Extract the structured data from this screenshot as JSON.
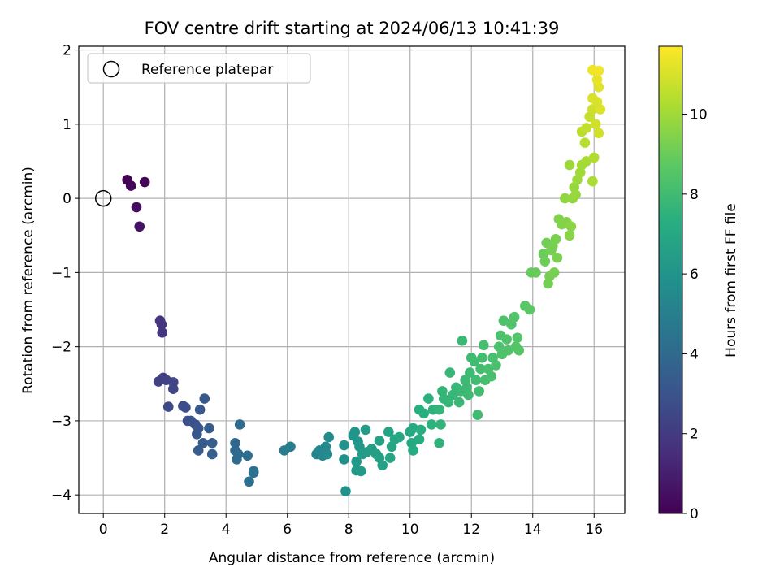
{
  "chart_data": {
    "type": "scatter",
    "title": "FOV centre drift starting at 2024/06/13 10:41:39",
    "xlabel": "Angular distance from reference (arcmin)",
    "ylabel": "Rotation from reference (arcmin)",
    "xlim": [
      -0.8,
      17.0
    ],
    "ylim": [
      -4.25,
      2.05
    ],
    "xticks": [
      0,
      2,
      4,
      6,
      8,
      10,
      12,
      14,
      16
    ],
    "yticks": [
      -4,
      -3,
      -2,
      -1,
      0,
      1,
      2
    ],
    "grid": true,
    "legend": {
      "placement": "top-left",
      "entries": [
        "Reference platepar"
      ]
    },
    "reference_point": {
      "x": 0,
      "y": 0
    },
    "colorbar": {
      "label": "Hours from first FF file",
      "min": 0,
      "max": 11.7,
      "ticks": [
        0,
        2,
        4,
        6,
        8,
        10
      ],
      "colormap": "viridis"
    },
    "series": [
      {
        "colormap_variable": "hours",
        "points": [
          {
            "x": 0.78,
            "y": 0.25,
            "c": 0.0
          },
          {
            "x": 1.35,
            "y": 0.22,
            "c": 0.1
          },
          {
            "x": 0.9,
            "y": 0.17,
            "c": 0.2
          },
          {
            "x": 1.08,
            "y": -0.12,
            "c": 0.4
          },
          {
            "x": 1.18,
            "y": -0.38,
            "c": 0.6
          },
          {
            "x": 1.85,
            "y": -1.65,
            "c": 1.7
          },
          {
            "x": 1.9,
            "y": -1.7,
            "c": 1.75
          },
          {
            "x": 1.92,
            "y": -1.81,
            "c": 1.8
          },
          {
            "x": 1.8,
            "y": -2.47,
            "c": 2.2
          },
          {
            "x": 1.95,
            "y": -2.42,
            "c": 2.25
          },
          {
            "x": 2.05,
            "y": -2.45,
            "c": 2.3
          },
          {
            "x": 2.28,
            "y": -2.48,
            "c": 2.4
          },
          {
            "x": 2.28,
            "y": -2.57,
            "c": 2.45
          },
          {
            "x": 2.12,
            "y": -2.81,
            "c": 2.55
          },
          {
            "x": 2.6,
            "y": -2.8,
            "c": 2.7
          },
          {
            "x": 2.68,
            "y": -2.82,
            "c": 2.75
          },
          {
            "x": 2.75,
            "y": -3.0,
            "c": 2.85
          },
          {
            "x": 2.85,
            "y": -3.0,
            "c": 2.9
          },
          {
            "x": 3.0,
            "y": -3.05,
            "c": 3.0
          },
          {
            "x": 3.1,
            "y": -3.1,
            "c": 3.05
          },
          {
            "x": 3.05,
            "y": -3.18,
            "c": 3.1
          },
          {
            "x": 3.15,
            "y": -2.85,
            "c": 3.15
          },
          {
            "x": 3.3,
            "y": -2.7,
            "c": 3.2
          },
          {
            "x": 3.25,
            "y": -3.3,
            "c": 3.3
          },
          {
            "x": 3.1,
            "y": -3.4,
            "c": 3.35
          },
          {
            "x": 3.45,
            "y": -3.1,
            "c": 3.4
          },
          {
            "x": 3.55,
            "y": -3.3,
            "c": 3.45
          },
          {
            "x": 3.55,
            "y": -3.45,
            "c": 3.5
          },
          {
            "x": 4.3,
            "y": -3.3,
            "c": 3.9
          },
          {
            "x": 4.3,
            "y": -3.4,
            "c": 3.95
          },
          {
            "x": 4.4,
            "y": -3.45,
            "c": 4.0
          },
          {
            "x": 4.35,
            "y": -3.52,
            "c": 4.05
          },
          {
            "x": 4.45,
            "y": -3.05,
            "c": 4.1
          },
          {
            "x": 4.7,
            "y": -3.47,
            "c": 4.15
          },
          {
            "x": 4.75,
            "y": -3.82,
            "c": 4.25
          },
          {
            "x": 4.9,
            "y": -3.7,
            "c": 4.3
          },
          {
            "x": 4.9,
            "y": -3.68,
            "c": 4.35
          },
          {
            "x": 5.9,
            "y": -3.4,
            "c": 4.8
          },
          {
            "x": 6.1,
            "y": -3.35,
            "c": 4.9
          },
          {
            "x": 6.95,
            "y": -3.45,
            "c": 5.3
          },
          {
            "x": 7.05,
            "y": -3.4,
            "c": 5.35
          },
          {
            "x": 7.15,
            "y": -3.47,
            "c": 5.4
          },
          {
            "x": 7.25,
            "y": -3.35,
            "c": 5.45
          },
          {
            "x": 7.3,
            "y": -3.45,
            "c": 5.5
          },
          {
            "x": 7.35,
            "y": -3.22,
            "c": 5.55
          },
          {
            "x": 7.85,
            "y": -3.52,
            "c": 5.8
          },
          {
            "x": 7.9,
            "y": -3.95,
            "c": 5.85
          },
          {
            "x": 7.85,
            "y": -3.33,
            "c": 5.9
          },
          {
            "x": 8.15,
            "y": -3.2,
            "c": 6.0
          },
          {
            "x": 8.2,
            "y": -3.15,
            "c": 6.05
          },
          {
            "x": 8.3,
            "y": -3.28,
            "c": 6.1
          },
          {
            "x": 8.35,
            "y": -3.35,
            "c": 6.15
          },
          {
            "x": 8.25,
            "y": -3.55,
            "c": 6.2
          },
          {
            "x": 8.25,
            "y": -3.67,
            "c": 6.25
          },
          {
            "x": 8.4,
            "y": -3.68,
            "c": 6.3
          },
          {
            "x": 8.45,
            "y": -3.45,
            "c": 6.35
          },
          {
            "x": 8.55,
            "y": -3.12,
            "c": 6.4
          },
          {
            "x": 8.6,
            "y": -3.42,
            "c": 6.45
          },
          {
            "x": 8.75,
            "y": -3.38,
            "c": 6.5
          },
          {
            "x": 8.9,
            "y": -3.45,
            "c": 6.55
          },
          {
            "x": 9.0,
            "y": -3.5,
            "c": 6.6
          },
          {
            "x": 9.0,
            "y": -3.27,
            "c": 6.65
          },
          {
            "x": 9.1,
            "y": -3.6,
            "c": 6.7
          },
          {
            "x": 9.3,
            "y": -3.15,
            "c": 6.75
          },
          {
            "x": 9.4,
            "y": -3.35,
            "c": 6.8
          },
          {
            "x": 9.35,
            "y": -3.5,
            "c": 6.85
          },
          {
            "x": 9.5,
            "y": -3.25,
            "c": 6.9
          },
          {
            "x": 9.65,
            "y": -3.22,
            "c": 6.95
          },
          {
            "x": 10.0,
            "y": -3.15,
            "c": 7.0
          },
          {
            "x": 10.1,
            "y": -3.1,
            "c": 7.05
          },
          {
            "x": 10.05,
            "y": -3.3,
            "c": 7.1
          },
          {
            "x": 10.1,
            "y": -3.4,
            "c": 7.15
          },
          {
            "x": 10.3,
            "y": -3.25,
            "c": 7.2
          },
          {
            "x": 10.35,
            "y": -3.12,
            "c": 7.25
          },
          {
            "x": 10.3,
            "y": -2.85,
            "c": 7.3
          },
          {
            "x": 10.45,
            "y": -2.9,
            "c": 7.35
          },
          {
            "x": 10.6,
            "y": -2.7,
            "c": 7.4
          },
          {
            "x": 10.7,
            "y": -3.05,
            "c": 7.45
          },
          {
            "x": 10.75,
            "y": -2.85,
            "c": 7.5
          },
          {
            "x": 10.95,
            "y": -3.3,
            "c": 7.55
          },
          {
            "x": 11.0,
            "y": -3.05,
            "c": 7.6
          },
          {
            "x": 10.95,
            "y": -2.85,
            "c": 7.62
          },
          {
            "x": 11.05,
            "y": -2.6,
            "c": 7.65
          },
          {
            "x": 11.1,
            "y": -2.7,
            "c": 7.68
          },
          {
            "x": 11.25,
            "y": -2.75,
            "c": 7.7
          },
          {
            "x": 11.3,
            "y": -2.35,
            "c": 7.72
          },
          {
            "x": 11.4,
            "y": -2.65,
            "c": 7.75
          },
          {
            "x": 11.5,
            "y": -2.55,
            "c": 7.78
          },
          {
            "x": 11.6,
            "y": -2.75,
            "c": 7.8
          },
          {
            "x": 11.65,
            "y": -2.6,
            "c": 7.82
          },
          {
            "x": 11.7,
            "y": -1.92,
            "c": 7.85
          },
          {
            "x": 11.8,
            "y": -2.45,
            "c": 7.87
          },
          {
            "x": 11.85,
            "y": -2.55,
            "c": 7.9
          },
          {
            "x": 11.9,
            "y": -2.65,
            "c": 7.92
          },
          {
            "x": 11.95,
            "y": -2.35,
            "c": 7.94
          },
          {
            "x": 12.0,
            "y": -2.15,
            "c": 7.96
          },
          {
            "x": 12.1,
            "y": -2.2,
            "c": 7.98
          },
          {
            "x": 12.15,
            "y": -2.45,
            "c": 8.0
          },
          {
            "x": 12.2,
            "y": -2.92,
            "c": 8.02
          },
          {
            "x": 12.25,
            "y": -2.6,
            "c": 8.05
          },
          {
            "x": 12.3,
            "y": -2.3,
            "c": 8.08
          },
          {
            "x": 12.35,
            "y": -2.15,
            "c": 8.1
          },
          {
            "x": 12.4,
            "y": -1.98,
            "c": 8.12
          },
          {
            "x": 12.45,
            "y": -2.45,
            "c": 8.15
          },
          {
            "x": 12.55,
            "y": -2.3,
            "c": 8.17
          },
          {
            "x": 12.65,
            "y": -2.4,
            "c": 8.2
          },
          {
            "x": 12.7,
            "y": -2.15,
            "c": 8.22
          },
          {
            "x": 12.8,
            "y": -2.25,
            "c": 8.25
          },
          {
            "x": 12.9,
            "y": -2.0,
            "c": 8.28
          },
          {
            "x": 12.95,
            "y": -1.85,
            "c": 8.3
          },
          {
            "x": 13.0,
            "y": -2.1,
            "c": 8.32
          },
          {
            "x": 13.05,
            "y": -1.65,
            "c": 8.35
          },
          {
            "x": 13.15,
            "y": -1.9,
            "c": 8.38
          },
          {
            "x": 13.2,
            "y": -2.05,
            "c": 8.4
          },
          {
            "x": 13.3,
            "y": -1.7,
            "c": 8.42
          },
          {
            "x": 13.4,
            "y": -1.6,
            "c": 8.45
          },
          {
            "x": 13.45,
            "y": -2.0,
            "c": 8.48
          },
          {
            "x": 13.5,
            "y": -1.88,
            "c": 8.5
          },
          {
            "x": 13.55,
            "y": -2.05,
            "c": 8.52
          },
          {
            "x": 13.75,
            "y": -1.45,
            "c": 8.6
          },
          {
            "x": 13.9,
            "y": -1.5,
            "c": 8.65
          },
          {
            "x": 13.95,
            "y": -1.0,
            "c": 8.9
          },
          {
            "x": 14.1,
            "y": -1.0,
            "c": 8.95
          },
          {
            "x": 14.35,
            "y": -0.75,
            "c": 9.0
          },
          {
            "x": 14.4,
            "y": -0.85,
            "c": 9.05
          },
          {
            "x": 14.45,
            "y": -0.6,
            "c": 9.1
          },
          {
            "x": 14.5,
            "y": -1.15,
            "c": 9.15
          },
          {
            "x": 14.55,
            "y": -1.05,
            "c": 9.18
          },
          {
            "x": 14.6,
            "y": -0.7,
            "c": 9.2
          },
          {
            "x": 14.65,
            "y": -0.65,
            "c": 9.22
          },
          {
            "x": 14.7,
            "y": -1.0,
            "c": 9.25
          },
          {
            "x": 14.75,
            "y": -0.55,
            "c": 9.28
          },
          {
            "x": 14.8,
            "y": -0.8,
            "c": 9.3
          },
          {
            "x": 14.85,
            "y": -0.28,
            "c": 9.4
          },
          {
            "x": 14.95,
            "y": -0.35,
            "c": 9.45
          },
          {
            "x": 15.1,
            "y": -0.32,
            "c": 9.5
          },
          {
            "x": 15.2,
            "y": -0.5,
            "c": 9.55
          },
          {
            "x": 15.25,
            "y": -0.38,
            "c": 9.6
          },
          {
            "x": 15.05,
            "y": 0.0,
            "c": 9.7
          },
          {
            "x": 15.3,
            "y": 0.0,
            "c": 9.75
          },
          {
            "x": 15.35,
            "y": 0.15,
            "c": 9.8
          },
          {
            "x": 15.4,
            "y": 0.05,
            "c": 9.85
          },
          {
            "x": 15.45,
            "y": 0.25,
            "c": 9.9
          },
          {
            "x": 15.2,
            "y": 0.45,
            "c": 9.95
          },
          {
            "x": 15.55,
            "y": 0.35,
            "c": 10.0
          },
          {
            "x": 15.6,
            "y": 0.45,
            "c": 10.05
          },
          {
            "x": 15.75,
            "y": 0.5,
            "c": 10.1
          },
          {
            "x": 15.95,
            "y": 0.23,
            "c": 10.2
          },
          {
            "x": 16.0,
            "y": 0.55,
            "c": 10.3
          },
          {
            "x": 15.7,
            "y": 0.75,
            "c": 10.4
          },
          {
            "x": 15.6,
            "y": 0.9,
            "c": 10.5
          },
          {
            "x": 15.75,
            "y": 0.95,
            "c": 10.6
          },
          {
            "x": 15.85,
            "y": 1.1,
            "c": 10.7
          },
          {
            "x": 15.95,
            "y": 1.2,
            "c": 10.8
          },
          {
            "x": 16.05,
            "y": 1.0,
            "c": 10.85
          },
          {
            "x": 16.15,
            "y": 0.88,
            "c": 10.9
          },
          {
            "x": 16.1,
            "y": 1.3,
            "c": 11.0
          },
          {
            "x": 15.95,
            "y": 1.35,
            "c": 11.05
          },
          {
            "x": 16.2,
            "y": 1.2,
            "c": 11.1
          },
          {
            "x": 16.15,
            "y": 1.5,
            "c": 11.2
          },
          {
            "x": 16.1,
            "y": 1.6,
            "c": 11.3
          },
          {
            "x": 15.95,
            "y": 1.73,
            "c": 11.4
          },
          {
            "x": 16.15,
            "y": 1.72,
            "c": 11.5
          }
        ]
      }
    ]
  }
}
